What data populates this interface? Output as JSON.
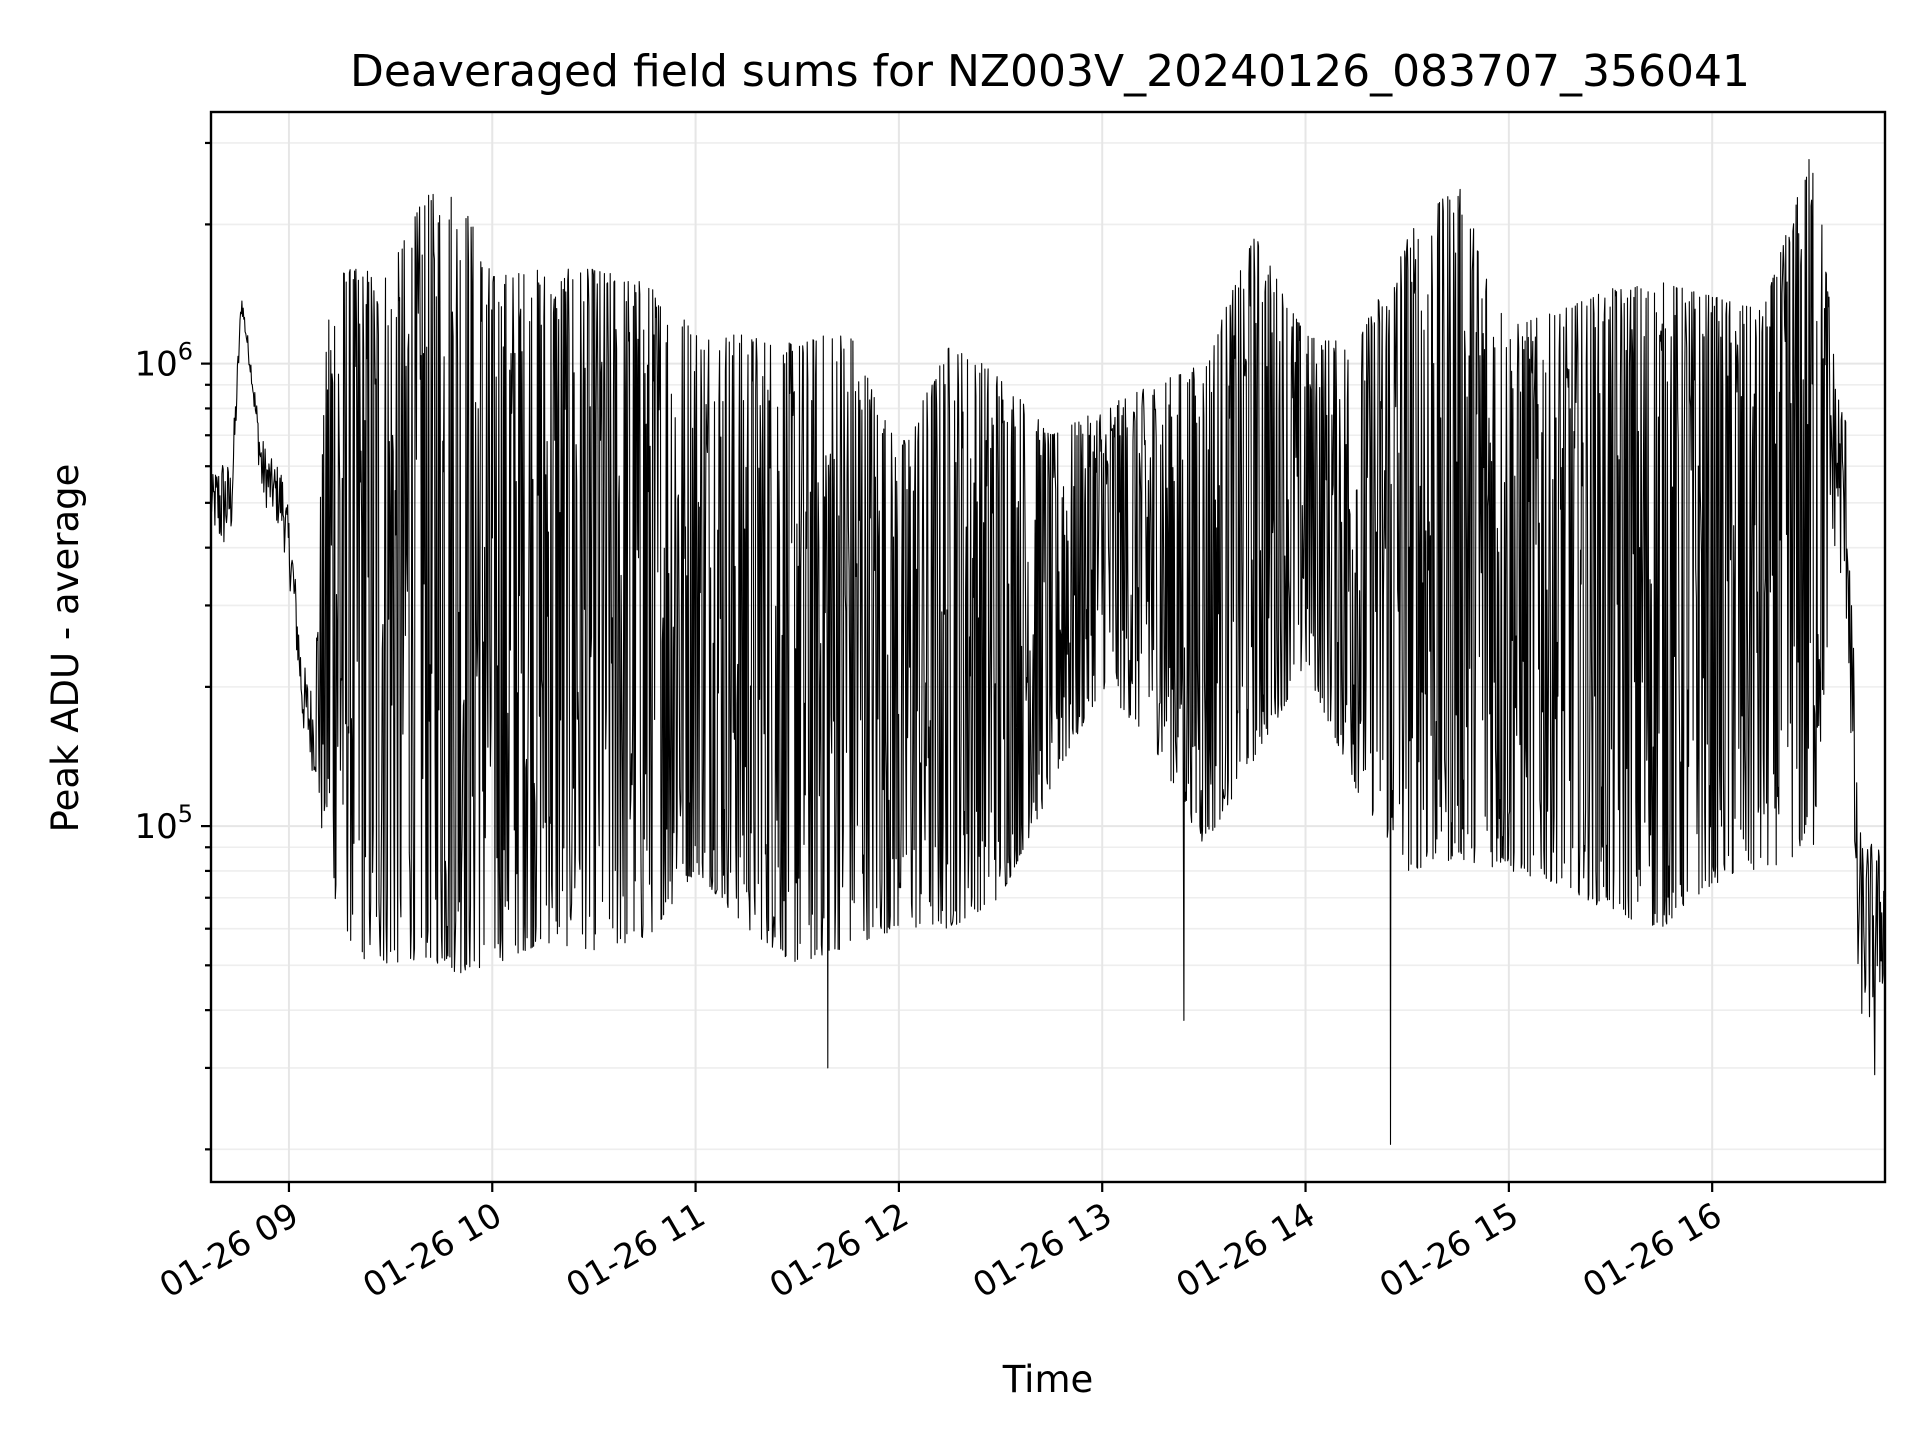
{
  "chart_data": {
    "type": "line",
    "title": "Deaveraged field sums for NZ003V_20240126_083707_356041",
    "xlabel": "Time",
    "ylabel": "Peak ADU - average",
    "yscale": "log",
    "xlim": [
      "2024-01-26 08:37",
      "2024-01-26 16:51"
    ],
    "ylim": [
      17000,
      3500000
    ],
    "grid": true,
    "x_ticks": [
      "01-26 09",
      "01-26 10",
      "01-26 11",
      "01-26 12",
      "01-26 13",
      "01-26 14",
      "01-26 15",
      "01-26 16"
    ],
    "y_ticks": [
      {
        "base": "10",
        "exp": "5",
        "value": 100000
      },
      {
        "base": "10",
        "exp": "6",
        "value": 1000000
      }
    ],
    "series": [
      {
        "color": "#000000",
        "x": [
          "2024-01-26 08:37",
          "2024-01-26 08:40",
          "2024-01-26 08:43",
          "2024-01-26 08:46",
          "2024-01-26 08:49",
          "2024-01-26 08:52",
          "2024-01-26 08:55",
          "2024-01-26 08:58",
          "2024-01-26 09:01",
          "2024-01-26 09:04",
          "2024-01-26 09:07",
          "2024-01-26 09:12",
          "2024-01-26 09:20",
          "2024-01-26 09:30",
          "2024-01-26 09:40",
          "2024-01-26 09:50",
          "2024-01-26 10:00",
          "2024-01-26 10:15",
          "2024-01-26 10:30",
          "2024-01-26 10:45",
          "2024-01-26 11:00",
          "2024-01-26 11:15",
          "2024-01-26 11:30",
          "2024-01-26 11:45",
          "2024-01-26 12:00",
          "2024-01-26 12:15",
          "2024-01-26 12:30",
          "2024-01-26 12:45",
          "2024-01-26 13:00",
          "2024-01-26 13:15",
          "2024-01-26 13:30",
          "2024-01-26 13:45",
          "2024-01-26 14:00",
          "2024-01-26 14:15",
          "2024-01-26 14:30",
          "2024-01-26 14:45",
          "2024-01-26 15:00",
          "2024-01-26 15:15",
          "2024-01-26 15:30",
          "2024-01-26 15:45",
          "2024-01-26 16:00",
          "2024-01-26 16:15",
          "2024-01-26 16:30",
          "2024-01-26 16:36",
          "2024-01-26 16:40",
          "2024-01-26 16:43",
          "2024-01-26 16:46",
          "2024-01-26 16:51"
        ],
        "lo": [
          450000,
          380000,
          420000,
          1300000,
          900000,
          500000,
          470000,
          420000,
          300000,
          160000,
          130000,
          75000,
          52000,
          50000,
          52000,
          48000,
          50000,
          56000,
          54000,
          56000,
          80000,
          60000,
          50000,
          55000,
          60000,
          60000,
          70000,
          120000,
          200000,
          150000,
          90000,
          140000,
          220000,
          120000,
          80000,
          85000,
          80000,
          75000,
          65000,
          60000,
          75000,
          80000,
          90000,
          400000,
          250000,
          40000,
          35000,
          45000
        ],
        "hi": [
          560000,
          650000,
          600000,
          1450000,
          1000000,
          700000,
          620000,
          600000,
          420000,
          230000,
          200000,
          1600000,
          1600000,
          1600000,
          2300000,
          2400000,
          1550000,
          1600000,
          1600000,
          1500000,
          1200000,
          1150000,
          1100000,
          1200000,
          650000,
          1100000,
          950000,
          700000,
          800000,
          900000,
          1000000,
          1900000,
          1150000,
          1100000,
          1900000,
          2450000,
          1200000,
          1300000,
          1450000,
          1500000,
          1400000,
          1300000,
          3000000,
          1100000,
          800000,
          100000,
          95000,
          90000
        ],
        "min_spikes": [
          {
            "x": "2024-01-26 11:39",
            "y": 30000
          },
          {
            "x": "2024-01-26 13:24",
            "y": 38000
          },
          {
            "x": "2024-01-26 14:25",
            "y": 20500
          },
          {
            "x": "2024-01-26 16:48",
            "y": 29000
          }
        ]
      }
    ]
  }
}
